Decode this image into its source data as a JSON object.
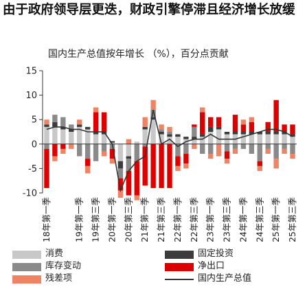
{
  "headline": "由于政府领导层更迭，财政引擎停滞且经济增长放缓",
  "chart_data": {
    "type": "bar",
    "title": "国内生产总值按年增长 （%），百分点贡献",
    "ylim": [
      -10,
      15
    ],
    "yticks": [
      -10,
      -5,
      0,
      5,
      10,
      15
    ],
    "categories": [
      "18年第一季",
      "18年第二季",
      "18年第三季",
      "18年第四季",
      "19年第一季",
      "19年第二季",
      "19年第三季",
      "19年第四季",
      "20年第一季",
      "20年第二季",
      "20年第三季",
      "20年第四季",
      "21年第一季",
      "21年第二季",
      "21年第三季",
      "21年第四季",
      "22年第一季",
      "22年第二季",
      "22年第三季",
      "22年第四季",
      "23年第一季",
      "23年第二季",
      "23年第三季",
      "23年第四季",
      "24年第一季",
      "24年第二季",
      "24年第三季",
      "24年第四季",
      "25年第一季",
      "25年第二季",
      "25年第三季"
    ],
    "xtick_labels": [
      "18年第一季",
      "19年第一季",
      "19年第三季",
      "20年第一季",
      "20年第三季",
      "21年第一季",
      "21年第三季",
      "22年第一季",
      "22年第三季",
      "23年第一季",
      "23年第三季",
      "24年第一季",
      "24年第三季",
      "25年第一季",
      "25年第三季"
    ],
    "series": [
      {
        "name": "消费",
        "kind": "bar",
        "color": "#c8c8c8",
        "values": [
          3.5,
          3.5,
          3.0,
          2.5,
          3.5,
          3.0,
          2.0,
          2.0,
          0.3,
          -3.5,
          -2.5,
          0.5,
          3.0,
          5.0,
          2.0,
          1.5,
          1.5,
          1.0,
          1.0,
          1.5,
          2.5,
          3.0,
          2.0,
          2.0,
          2.0,
          2.0,
          2.0,
          2.0,
          2.0,
          2.0,
          1.5
        ]
      },
      {
        "name": "固定投资",
        "kind": "bar",
        "color": "#3c3c3c",
        "values": [
          0.5,
          1.0,
          0.5,
          0.5,
          0.5,
          0.5,
          0.5,
          0.5,
          0.3,
          -1.5,
          -0.5,
          0.0,
          0.5,
          0.5,
          0.5,
          0.5,
          0.5,
          0.5,
          0.5,
          0.5,
          1.0,
          0.5,
          0.5,
          0.5,
          0.5,
          0.5,
          0.5,
          0.5,
          0.5,
          0.5,
          0.5
        ]
      },
      {
        "name": "库存变动",
        "kind": "bar",
        "color": "#8a8a8a",
        "values": [
          -1.0,
          1.5,
          2.0,
          1.0,
          -2.5,
          -3.0,
          -3.5,
          -1.5,
          -1.0,
          -2.0,
          -2.5,
          -3.5,
          -0.5,
          1.5,
          0.5,
          0.5,
          -2.5,
          -2.0,
          2.0,
          -2.0,
          -2.0,
          0.0,
          -1.5,
          -1.0,
          -1.0,
          -2.0,
          -3.5,
          -1.0,
          -3.0,
          -1.0,
          -2.0
        ]
      },
      {
        "name": "净出口",
        "kind": "bar",
        "color": "#dd0000",
        "values": [
          -8.0,
          -2.5,
          -1.0,
          0.0,
          0.0,
          -1.5,
          4.0,
          4.0,
          -2.0,
          -2.5,
          -5.0,
          -7.0,
          -8.0,
          -9.0,
          -9.0,
          -9.0,
          -2.0,
          -2.0,
          0.5,
          4.5,
          2.0,
          2.0,
          -1.5,
          3.5,
          1.5,
          2.0,
          -1.0,
          2.0,
          6.5,
          1.5,
          2.0
        ]
      },
      {
        "name": "残差项",
        "kind": "bar",
        "color": "#ee8466",
        "values": [
          1.0,
          -1.0,
          -1.0,
          -1.0,
          1.0,
          -1.5,
          1.0,
          -1.0,
          -1.0,
          -1.5,
          1.0,
          -1.0,
          2.0,
          2.0,
          1.0,
          1.0,
          -1.0,
          -1.0,
          -1.0,
          1.0,
          -1.0,
          -2.5,
          -1.0,
          -1.0,
          1.0,
          1.0,
          -1.0,
          -1.0,
          -2.0,
          -1.0,
          -1.0
        ]
      },
      {
        "name": "国内生产总值",
        "kind": "line",
        "color": "#333333",
        "values": [
          3.0,
          3.5,
          3.5,
          3.0,
          3.0,
          2.5,
          2.5,
          2.5,
          0.0,
          -9.5,
          -5.5,
          -3.5,
          -2.5,
          7.0,
          0.0,
          1.0,
          -0.5,
          0.5,
          1.0,
          1.0,
          2.0,
          1.0,
          1.0,
          1.0,
          1.5,
          2.0,
          2.5,
          3.0,
          3.0,
          2.5,
          1.5
        ]
      }
    ],
    "legend": {
      "placement": "bottom",
      "columns": 2
    },
    "grid": false
  }
}
